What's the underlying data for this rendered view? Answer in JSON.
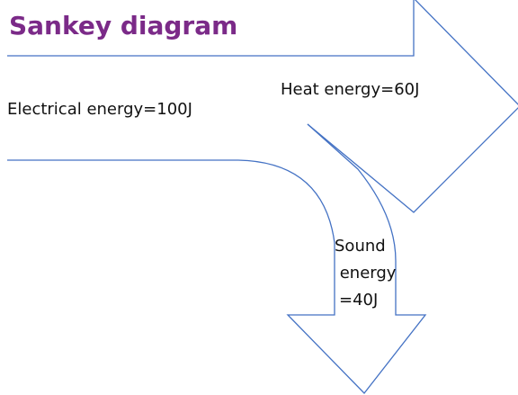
{
  "title": "Sankey diagram",
  "nodes": [
    {
      "label_lines": [
        "Electrical energy=100J"
      ]
    },
    {
      "label_lines": [
        "Heat energy=60J"
      ]
    },
    {
      "label_lines": [
        "Sound",
        " energy",
        "=40J"
      ]
    }
  ]
}
